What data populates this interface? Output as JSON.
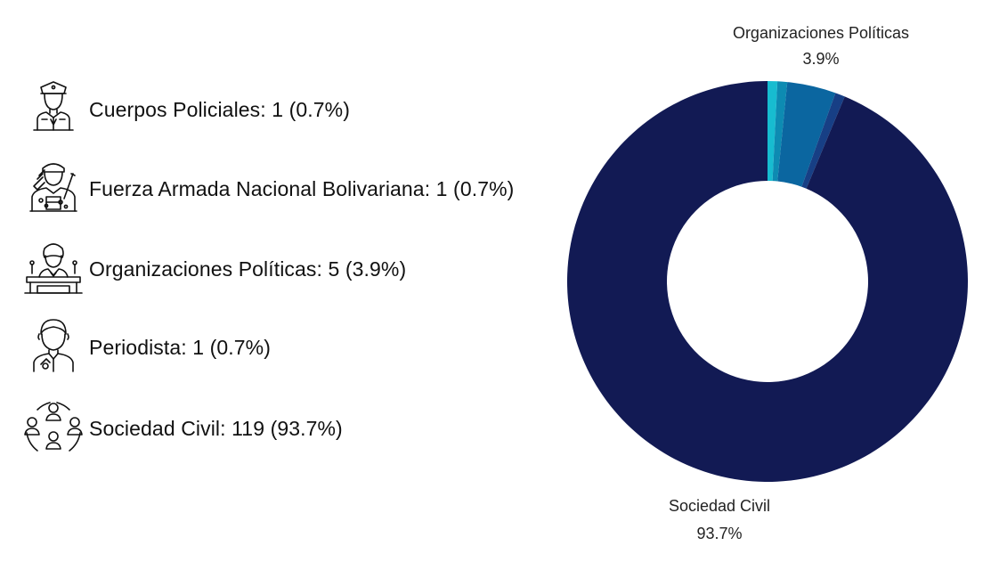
{
  "legend": [
    {
      "label": "Cuerpos Policiales: 1 (0.7%)",
      "icon": "police-officer-icon"
    },
    {
      "label": "Fuerza Armada Nacional Bolivariana: 1 (0.7%)",
      "icon": "soldier-saluting-icon"
    },
    {
      "label": "Organizaciones Políticas: 5 (3.9%)",
      "icon": "politician-podium-icon"
    },
    {
      "label": "Periodista: 1 (0.7%)",
      "icon": "journalist-icon"
    },
    {
      "label": "Sociedad Civil: 119 (93.7%)",
      "icon": "community-group-icon"
    }
  ],
  "callouts": {
    "political": {
      "name": "Organizaciones Políticas",
      "pct": "3.9%"
    },
    "civil": {
      "name": "Sociedad Civil",
      "pct": "93.7%"
    }
  },
  "chart_data": {
    "type": "pie",
    "variant": "donut",
    "categories": [
      "Cuerpos Policiales",
      "Fuerza Armada Nacional Bolivariana",
      "Organizaciones Políticas",
      "Periodista",
      "Sociedad Civil"
    ],
    "values": [
      1,
      1,
      5,
      1,
      119
    ],
    "percentages": [
      0.7,
      0.7,
      3.9,
      0.7,
      93.7
    ],
    "colors": [
      "#17bcd0",
      "#0d8bb2",
      "#0b66a0",
      "#173f85",
      "#121a54"
    ]
  }
}
